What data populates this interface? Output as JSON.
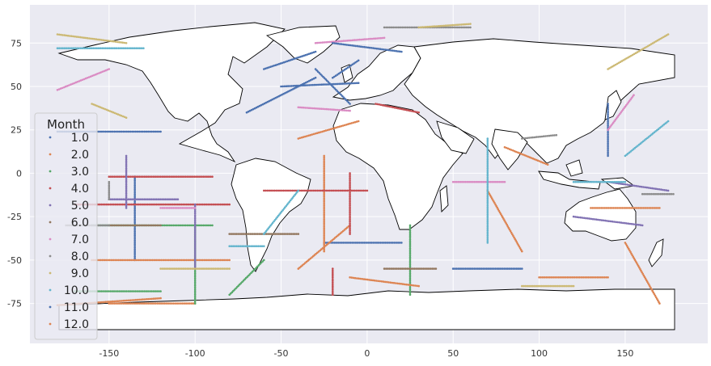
{
  "chart_data": {
    "type": "scatter",
    "title": "",
    "xlabel": "",
    "ylabel": "",
    "xlim": [
      -196,
      198
    ],
    "ylim": [
      -98,
      97
    ],
    "xticks": [
      -150,
      -100,
      -50,
      0,
      50,
      100,
      150
    ],
    "yticks": [
      75,
      50,
      25,
      0,
      -25,
      -50,
      -75
    ],
    "grid": true,
    "background": "#eaeaf2",
    "land_fill": "#ffffff",
    "land_outline": "#000000",
    "legend": {
      "title": "Month",
      "placement": "left",
      "entries": [
        "1.0",
        "2.0",
        "3.0",
        "4.0",
        "5.0",
        "6.0",
        "7.0",
        "8.0",
        "9.0",
        "10.0",
        "11.0",
        "12.0"
      ]
    },
    "series": [
      {
        "name": "1.0",
        "color": "#4c72b0",
        "tracks": [
          [
            [
              -180,
              24
            ],
            [
              -120,
              24
            ]
          ],
          [
            [
              -135,
              -2
            ],
            [
              -135,
              -50
            ]
          ],
          [
            [
              -25,
              -40
            ],
            [
              20,
              -40
            ]
          ],
          [
            [
              50,
              -55
            ],
            [
              90,
              -55
            ]
          ],
          [
            [
              140,
              10
            ],
            [
              140,
              40
            ]
          ],
          [
            [
              -60,
              60
            ],
            [
              -30,
              70
            ]
          ],
          [
            [
              -20,
              55
            ],
            [
              -5,
              65
            ]
          ]
        ]
      },
      {
        "name": "2.0",
        "color": "#dd8452",
        "tracks": [
          [
            [
              -160,
              -50
            ],
            [
              -80,
              -50
            ]
          ],
          [
            [
              -25,
              10
            ],
            [
              -25,
              -45
            ]
          ],
          [
            [
              -10,
              -30
            ],
            [
              -40,
              -55
            ]
          ],
          [
            [
              70,
              -10
            ],
            [
              90,
              -45
            ]
          ],
          [
            [
              130,
              -20
            ],
            [
              170,
              -20
            ]
          ],
          [
            [
              -5,
              30
            ],
            [
              -40,
              20
            ]
          ],
          [
            [
              80,
              15
            ],
            [
              105,
              5
            ]
          ],
          [
            [
              -150,
              -75
            ],
            [
              -100,
              -75
            ]
          ]
        ]
      },
      {
        "name": "3.0",
        "color": "#55a868",
        "tracks": [
          [
            [
              -100,
              -30
            ],
            [
              -100,
              -75
            ]
          ],
          [
            [
              -160,
              -30
            ],
            [
              -90,
              -30
            ]
          ],
          [
            [
              25,
              -30
            ],
            [
              25,
              -70
            ]
          ],
          [
            [
              -170,
              -68
            ],
            [
              -120,
              -68
            ]
          ],
          [
            [
              -80,
              -70
            ],
            [
              -60,
              -50
            ]
          ]
        ]
      },
      {
        "name": "4.0",
        "color": "#c44e52",
        "tracks": [
          [
            [
              -170,
              -18
            ],
            [
              -80,
              -18
            ]
          ],
          [
            [
              -10,
              0
            ],
            [
              -10,
              -35
            ]
          ],
          [
            [
              -60,
              -10
            ],
            [
              0,
              -10
            ]
          ],
          [
            [
              -20,
              -55
            ],
            [
              -20,
              -70
            ]
          ],
          [
            [
              -150,
              -2
            ],
            [
              -90,
              -2
            ]
          ],
          [
            [
              30,
              35
            ],
            [
              5,
              40
            ]
          ]
        ]
      },
      {
        "name": "5.0",
        "color": "#8172b3",
        "tracks": [
          [
            [
              -140,
              10
            ],
            [
              -140,
              -20
            ]
          ],
          [
            [
              -100,
              -18
            ],
            [
              -100,
              -55
            ]
          ],
          [
            [
              120,
              -25
            ],
            [
              160,
              -30
            ]
          ],
          [
            [
              -150,
              -15
            ],
            [
              -110,
              -15
            ]
          ],
          [
            [
              140,
              -5
            ],
            [
              175,
              -10
            ]
          ]
        ]
      },
      {
        "name": "6.0",
        "color": "#937860",
        "tracks": [
          [
            [
              -150,
              -30
            ],
            [
              -120,
              -30
            ]
          ],
          [
            [
              10,
              -55
            ],
            [
              40,
              -55
            ]
          ],
          [
            [
              -80,
              -35
            ],
            [
              -40,
              -35
            ]
          ]
        ]
      },
      {
        "name": "7.0",
        "color": "#da8bc3",
        "tracks": [
          [
            [
              -180,
              48
            ],
            [
              -150,
              60
            ]
          ],
          [
            [
              50,
              -5
            ],
            [
              80,
              -5
            ]
          ],
          [
            [
              -40,
              38
            ],
            [
              -10,
              36
            ]
          ],
          [
            [
              140,
              25
            ],
            [
              155,
              45
            ]
          ],
          [
            [
              -30,
              75
            ],
            [
              10,
              78
            ]
          ],
          [
            [
              -120,
              -20
            ],
            [
              -100,
              -20
            ]
          ]
        ]
      },
      {
        "name": "8.0",
        "color": "#8c8c8c",
        "tracks": [
          [
            [
              -150,
              -5
            ],
            [
              -150,
              -15
            ]
          ],
          [
            [
              10,
              84
            ],
            [
              60,
              84
            ]
          ],
          [
            [
              160,
              -12
            ],
            [
              178,
              -12
            ]
          ],
          [
            [
              -175,
              -30
            ],
            [
              -150,
              -30
            ]
          ],
          [
            [
              90,
              20
            ],
            [
              110,
              22
            ]
          ]
        ]
      },
      {
        "name": "9.0",
        "color": "#ccb974",
        "tracks": [
          [
            [
              -180,
              80
            ],
            [
              -140,
              75
            ]
          ],
          [
            [
              140,
              60
            ],
            [
              175,
              80
            ]
          ],
          [
            [
              -120,
              -55
            ],
            [
              -80,
              -55
            ]
          ],
          [
            [
              30,
              84
            ],
            [
              60,
              86
            ]
          ],
          [
            [
              -160,
              40
            ],
            [
              -140,
              32
            ]
          ],
          [
            [
              90,
              -65
            ],
            [
              120,
              -65
            ]
          ]
        ]
      },
      {
        "name": "10.0",
        "color": "#64b5cd",
        "tracks": [
          [
            [
              -180,
              72
            ],
            [
              -130,
              72
            ]
          ],
          [
            [
              70,
              20
            ],
            [
              70,
              -40
            ]
          ],
          [
            [
              -60,
              -35
            ],
            [
              -40,
              -10
            ]
          ],
          [
            [
              150,
              10
            ],
            [
              175,
              30
            ]
          ],
          [
            [
              -80,
              -42
            ],
            [
              -60,
              -42
            ]
          ],
          [
            [
              120,
              -5
            ],
            [
              150,
              -5
            ]
          ]
        ]
      },
      {
        "name": "11.0",
        "color": "#4c72b0",
        "tracks": [
          [
            [
              -30,
              60
            ],
            [
              -10,
              40
            ]
          ],
          [
            [
              -50,
              50
            ],
            [
              -5,
              52
            ]
          ],
          [
            [
              -70,
              35
            ],
            [
              -30,
              55
            ]
          ],
          [
            [
              -20,
              75
            ],
            [
              20,
              70
            ]
          ]
        ]
      },
      {
        "name": "12.0",
        "color": "#dd8452",
        "tracks": [
          [
            [
              -180,
              -76
            ],
            [
              -120,
              -72
            ]
          ],
          [
            [
              150,
              -40
            ],
            [
              170,
              -75
            ]
          ],
          [
            [
              100,
              -60
            ],
            [
              140,
              -60
            ]
          ],
          [
            [
              -10,
              -60
            ],
            [
              30,
              -65
            ]
          ]
        ]
      }
    ]
  }
}
